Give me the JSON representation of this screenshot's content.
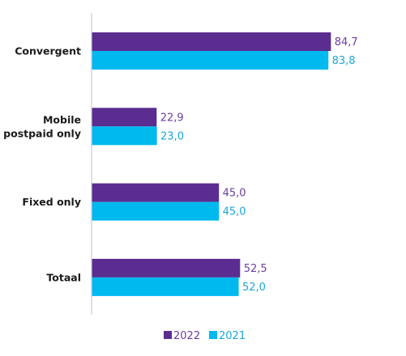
{
  "chart_data": {
    "type": "bar",
    "orientation": "horizontal",
    "categories": [
      "Convergent",
      "Mobile postpaid only",
      "Fixed only",
      "Totaal"
    ],
    "category_label_lines": [
      [
        "Convergent"
      ],
      [
        "Mobile",
        "postpaid only"
      ],
      [
        "Fixed only"
      ],
      [
        "Totaal"
      ]
    ],
    "series": [
      {
        "name": "2022",
        "values": [
          84.7,
          22.9,
          45.0,
          52.5
        ],
        "labels": [
          "84,7",
          "22,9",
          "45,0",
          "52,5"
        ],
        "color": "#5b2d90",
        "label_color": "#6a3ea1"
      },
      {
        "name": "2021",
        "values": [
          83.8,
          23.0,
          45.0,
          52.0
        ],
        "labels": [
          "83,8",
          "23,0",
          "45,0",
          "52,0"
        ],
        "color": "#00b9ee",
        "label_color": "#1aa8d8"
      }
    ],
    "xlim": [
      0,
      100
    ],
    "legend": {
      "placement": "bottom",
      "items": [
        "2022",
        "2021"
      ]
    },
    "grid": false,
    "axis_color": "#c8c8d8"
  }
}
